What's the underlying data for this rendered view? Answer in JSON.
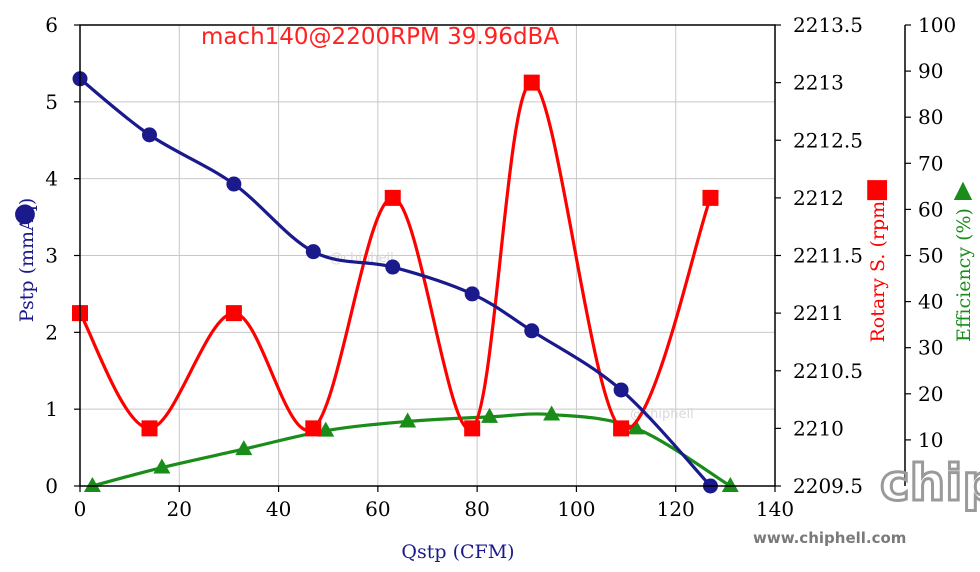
{
  "chart_data": {
    "type": "line",
    "title": "mach140@2200RPM 39.96dBA",
    "xlabel": "Qstp (CFM)",
    "xlim": [
      0,
      140
    ],
    "xticks": [
      0,
      20,
      40,
      60,
      80,
      100,
      120,
      140
    ],
    "grid": true,
    "axes": {
      "left": {
        "label": "Pstp (mmAq)",
        "ylim": [
          0,
          6
        ],
        "ticks": [
          0,
          1,
          2,
          3,
          4,
          5,
          6
        ],
        "color": "#1a1a8c",
        "marker": "●"
      },
      "right1": {
        "label": "Rotary S. (rpm)",
        "ylim": [
          2209.5,
          2213.5
        ],
        "ticks": [
          2209.5,
          2210,
          2210.5,
          2211,
          2211.5,
          2212,
          2212.5,
          2213,
          2213.5
        ],
        "color": "#ff0000",
        "marker": "■"
      },
      "right2": {
        "label": "Efficiency (%)",
        "ylim": [
          0,
          100
        ],
        "ticks": [
          10,
          20,
          30,
          40,
          50,
          60,
          70,
          80,
          90,
          100
        ],
        "color": "#1a8c1a",
        "marker": "▲"
      }
    },
    "series": [
      {
        "name": "Pstp",
        "axis": "left",
        "color": "#1a1a8c",
        "marker": "circle",
        "x": [
          0,
          14,
          31,
          47,
          63,
          79,
          91,
          109,
          127
        ],
        "y": [
          5.3,
          4.57,
          3.93,
          3.05,
          2.85,
          2.5,
          2.02,
          1.25,
          0
        ]
      },
      {
        "name": "Rotary S.",
        "axis": "right1",
        "color": "#ff0000",
        "marker": "square",
        "x": [
          0,
          14,
          31,
          47,
          63,
          79,
          91,
          109,
          127
        ],
        "y": [
          2211,
          2210,
          2211,
          2210,
          2212,
          2210,
          2213,
          2210,
          2212
        ]
      },
      {
        "name": "Efficiency",
        "axis": "right2",
        "color": "#1a8c1a",
        "marker": "triangle",
        "x": [
          2.5,
          16.5,
          33,
          49.5,
          66,
          82.5,
          95,
          112,
          131
        ],
        "y": [
          0,
          4,
          8,
          12,
          14,
          15,
          15.5,
          12.5,
          0
        ]
      }
    ]
  },
  "watermark": {
    "site": "www.chiphell.com",
    "logo": "chip hell",
    "mark_text": "@chiphell"
  }
}
